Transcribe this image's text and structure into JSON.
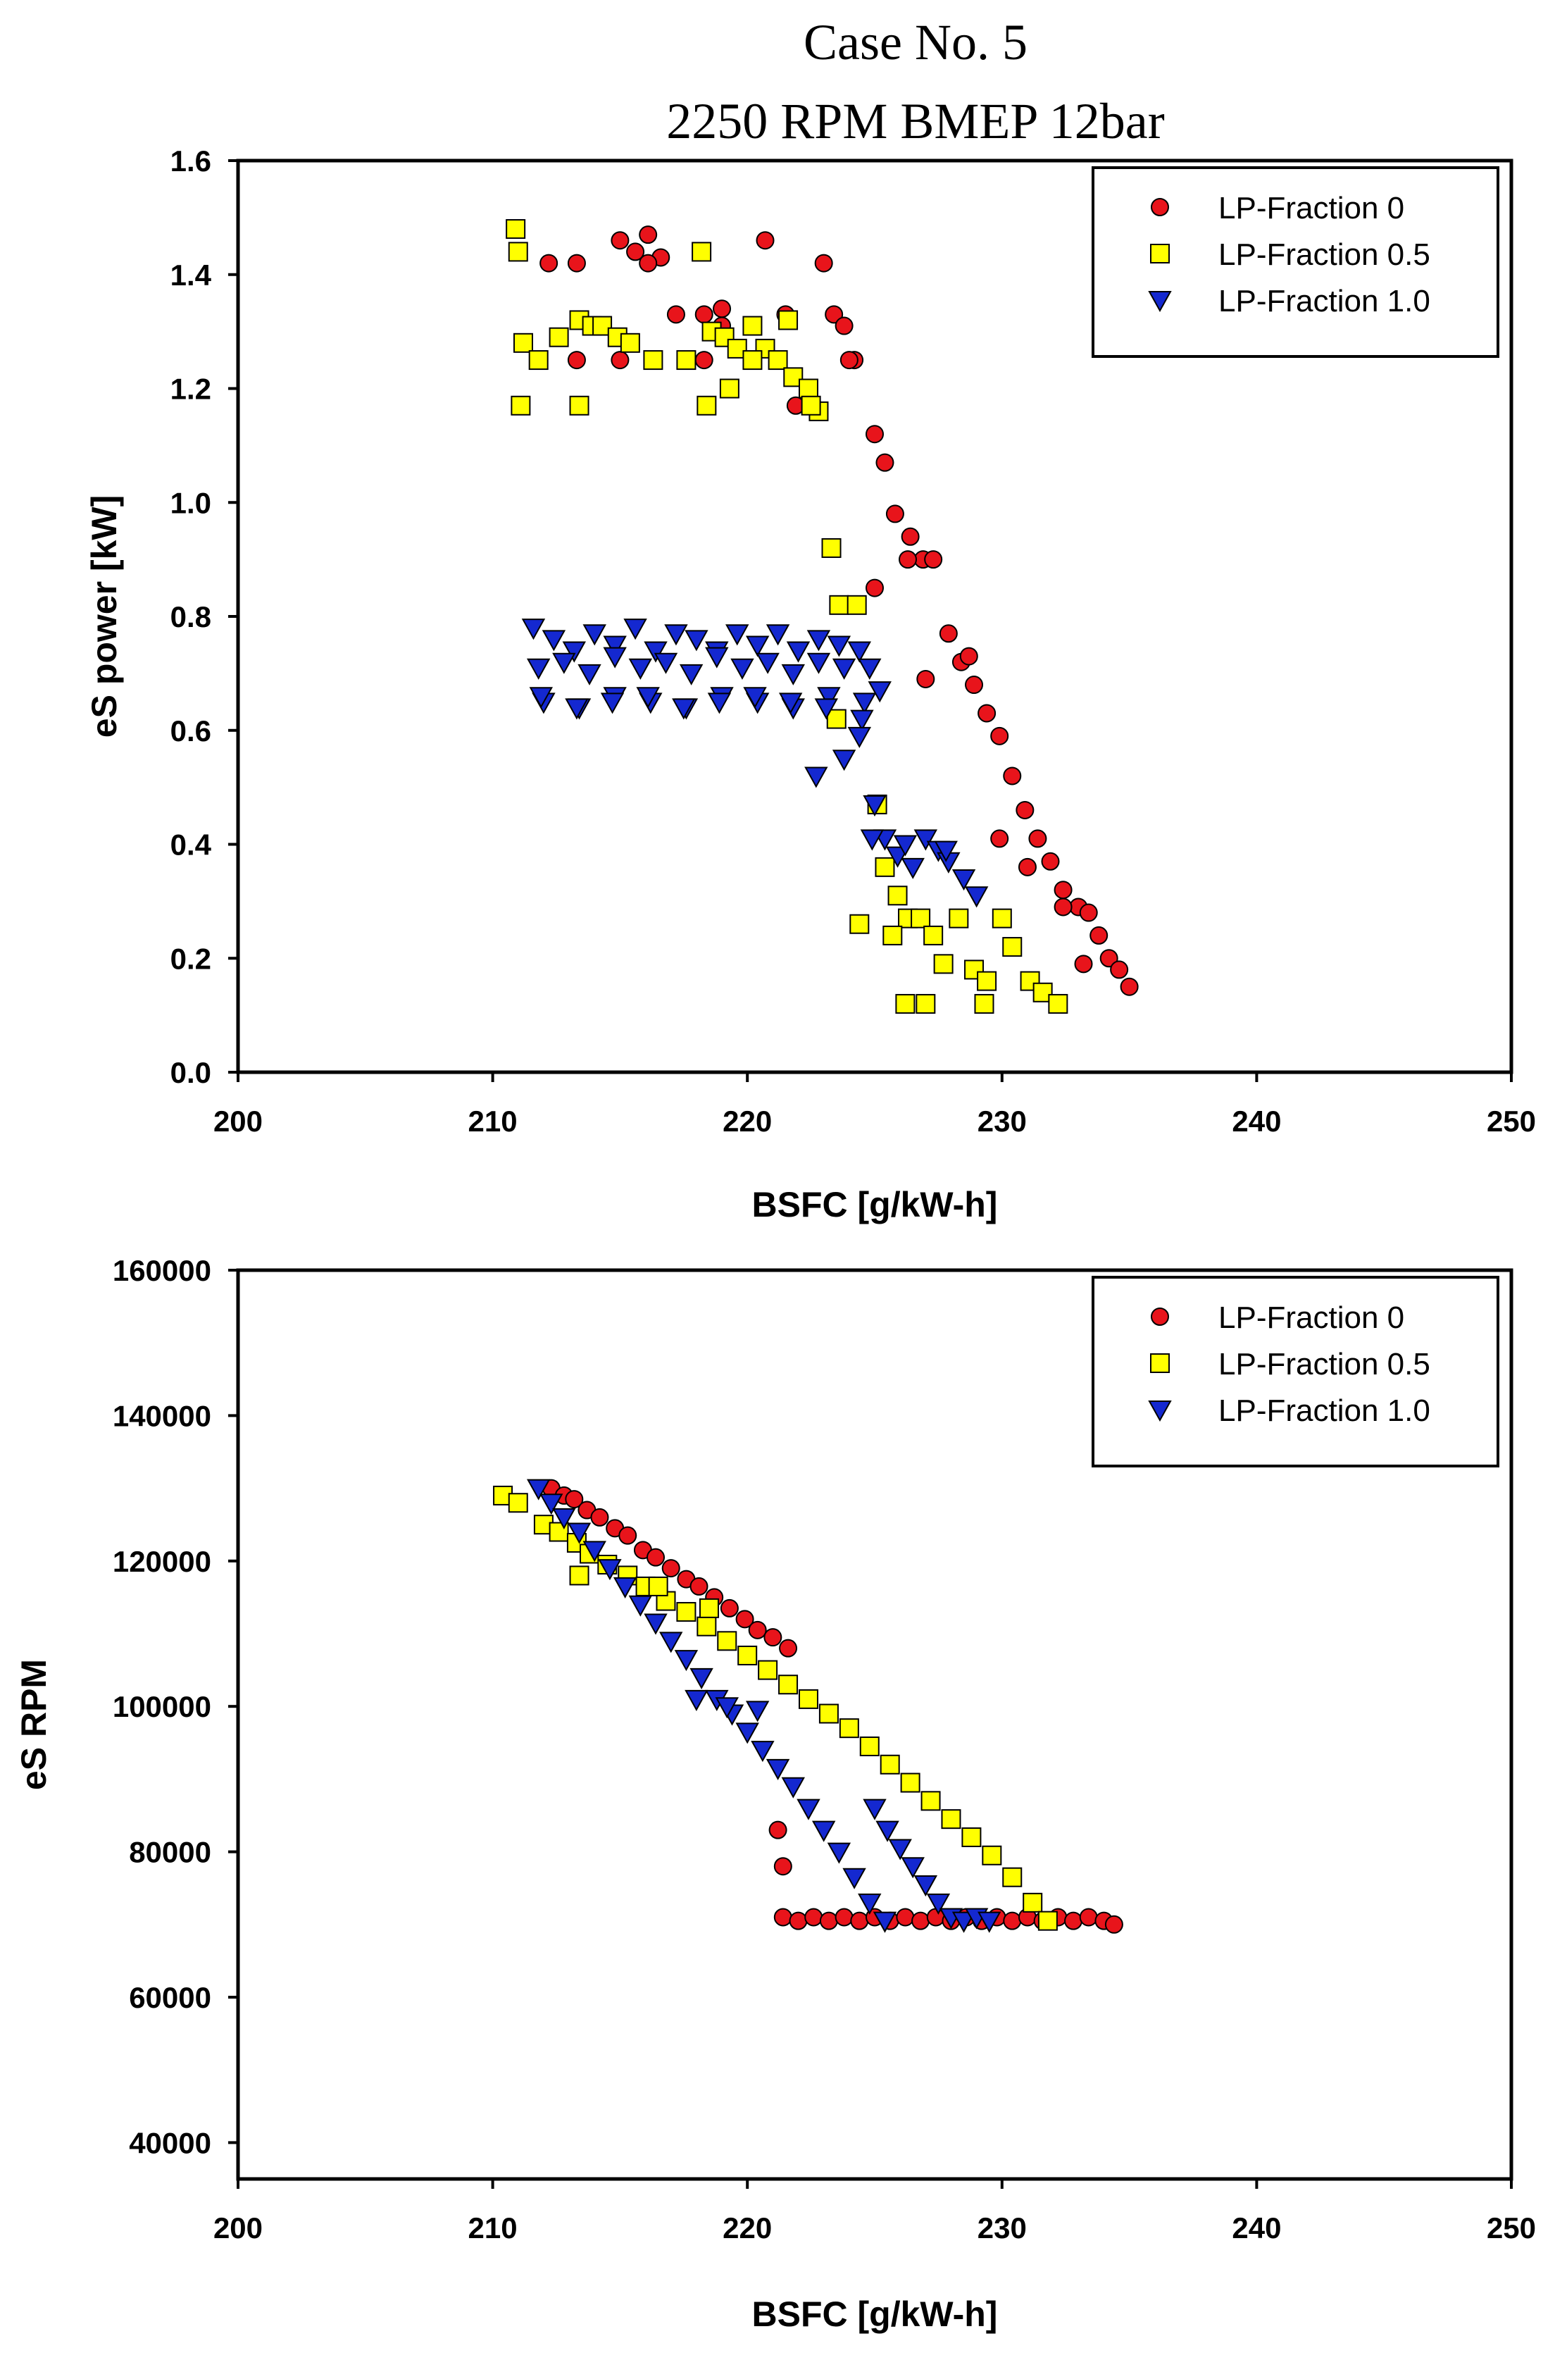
{
  "title": {
    "line1": "Case No. 5",
    "line2": "2250 RPM BMEP 12bar"
  },
  "chart_data": [
    {
      "type": "scatter",
      "xlabel": "BSFC [g/kW-h]",
      "ylabel": "eS power [kW]",
      "xlim": [
        200,
        250
      ],
      "ylim": [
        0,
        1.6
      ],
      "xticks": [
        "200",
        "210",
        "220",
        "230",
        "240",
        "250"
      ],
      "yticks": [
        "0.0",
        "0.2",
        "0.4",
        "0.6",
        "0.8",
        "1.0",
        "1.2",
        "1.4",
        "1.6"
      ],
      "legend_position": "top-right",
      "series": [
        {
          "name": "LP-Fraction 0",
          "color": "#e8141b",
          "marker": "circle",
          "x": [
            212.2,
            213.3,
            215.0,
            215.6,
            216.1,
            216.6,
            218.3,
            219.0,
            220.7,
            221.5,
            223.0,
            223.4,
            223.8,
            224.2,
            225.0,
            225.4,
            225.8,
            226.4,
            226.9,
            227.3,
            227.9,
            228.4,
            228.9,
            229.4,
            229.9,
            230.4,
            230.9,
            231.4,
            231.9,
            232.4,
            233.0,
            233.4,
            233.8,
            234.2,
            234.6,
            235.0,
            216.1,
            217.2,
            218.3,
            219.0,
            213.3,
            215.0,
            221.9,
            224.0,
            226.3,
            227.0,
            225.0,
            228.7,
            229.9,
            231.0,
            232.4,
            233.2
          ],
          "y": [
            1.42,
            1.42,
            1.46,
            1.44,
            1.47,
            1.43,
            1.33,
            1.34,
            1.46,
            1.33,
            1.42,
            1.33,
            1.31,
            1.25,
            1.12,
            1.07,
            0.98,
            0.94,
            0.9,
            0.9,
            0.77,
            0.72,
            0.68,
            0.63,
            0.59,
            0.52,
            0.46,
            0.41,
            0.37,
            0.32,
            0.29,
            0.28,
            0.24,
            0.2,
            0.18,
            0.15,
            1.42,
            1.33,
            1.25,
            1.31,
            1.25,
            1.25,
            1.17,
            1.25,
            0.9,
            0.69,
            0.85,
            0.73,
            0.41,
            0.36,
            0.29,
            0.19
          ]
        },
        {
          "name": "LP-Fraction 0.5",
          "color": "#ffff00",
          "marker": "square",
          "x": [
            210.9,
            211.0,
            211.2,
            211.8,
            212.6,
            213.4,
            213.9,
            214.3,
            214.9,
            215.4,
            216.3,
            217.6,
            218.2,
            218.6,
            219.1,
            219.6,
            220.2,
            220.7,
            221.2,
            221.8,
            222.4,
            222.8,
            211.1,
            213.4,
            218.4,
            219.3,
            220.2,
            221.6,
            222.5,
            223.3,
            223.6,
            224.3,
            224.4,
            225.1,
            225.4,
            225.9,
            226.3,
            226.8,
            227.3,
            227.7,
            228.3,
            228.9,
            229.4,
            230.0,
            230.4,
            231.1,
            231.6,
            232.2,
            226.2,
            227.0,
            229.3,
            223.5,
            225.7
          ],
          "y": [
            1.48,
            1.44,
            1.28,
            1.25,
            1.29,
            1.32,
            1.31,
            1.31,
            1.29,
            1.28,
            1.25,
            1.25,
            1.44,
            1.3,
            1.29,
            1.27,
            1.31,
            1.27,
            1.25,
            1.22,
            1.2,
            1.16,
            1.17,
            1.17,
            1.17,
            1.2,
            1.25,
            1.32,
            1.17,
            0.92,
            0.82,
            0.82,
            0.26,
            0.47,
            0.36,
            0.31,
            0.27,
            0.27,
            0.24,
            0.19,
            0.27,
            0.18,
            0.16,
            0.27,
            0.22,
            0.16,
            0.14,
            0.12,
            0.12,
            0.12,
            0.12,
            0.62,
            0.24
          ]
        },
        {
          "name": "LP-Fraction 1.0",
          "color": "#1428d0",
          "marker": "triangle-down",
          "x": [
            211.6,
            212.4,
            213.2,
            214.0,
            214.8,
            215.6,
            216.4,
            217.2,
            218.0,
            218.8,
            219.6,
            220.4,
            221.2,
            222.0,
            222.8,
            223.6,
            224.4,
            211.8,
            212.8,
            213.8,
            214.8,
            215.8,
            216.8,
            217.8,
            218.8,
            219.8,
            220.8,
            221.8,
            222.8,
            223.8,
            224.8,
            212.0,
            213.4,
            214.8,
            216.2,
            217.6,
            219.0,
            220.4,
            221.8,
            223.2,
            224.6,
            225.2,
            211.9,
            213.3,
            214.7,
            216.1,
            217.5,
            218.9,
            220.3,
            221.7,
            223.1,
            224.5,
            222.7,
            223.8,
            224.4,
            225.0,
            225.4,
            225.9,
            226.5,
            227.0,
            227.5,
            227.9,
            228.5,
            229.0,
            224.9,
            226.2,
            227.8
          ],
          "y": [
            0.78,
            0.76,
            0.74,
            0.77,
            0.75,
            0.78,
            0.74,
            0.77,
            0.76,
            0.74,
            0.77,
            0.75,
            0.77,
            0.74,
            0.76,
            0.75,
            0.74,
            0.71,
            0.72,
            0.7,
            0.73,
            0.71,
            0.72,
            0.7,
            0.73,
            0.71,
            0.72,
            0.7,
            0.72,
            0.71,
            0.71,
            0.65,
            0.64,
            0.66,
            0.65,
            0.64,
            0.66,
            0.65,
            0.64,
            0.66,
            0.65,
            0.67,
            0.66,
            0.64,
            0.65,
            0.66,
            0.64,
            0.65,
            0.66,
            0.65,
            0.64,
            0.62,
            0.52,
            0.55,
            0.59,
            0.47,
            0.41,
            0.38,
            0.36,
            0.41,
            0.39,
            0.37,
            0.34,
            0.31,
            0.41,
            0.4,
            0.39
          ]
        }
      ]
    },
    {
      "type": "scatter",
      "xlabel": "BSFC [g/kW-h]",
      "ylabel": "eS RPM",
      "xlim": [
        200,
        250
      ],
      "ylim": [
        35000,
        160000
      ],
      "xticks": [
        "200",
        "210",
        "220",
        "230",
        "240",
        "250"
      ],
      "yticks": [
        "40000",
        "60000",
        "80000",
        "100000",
        "120000",
        "140000",
        "160000"
      ],
      "legend_position": "top-right",
      "series": [
        {
          "name": "LP-Fraction 0",
          "color": "#e8141b",
          "marker": "circle",
          "x": [
            212.3,
            212.8,
            213.2,
            213.7,
            214.2,
            214.8,
            215.3,
            215.9,
            216.4,
            217.0,
            217.6,
            218.1,
            218.7,
            219.3,
            219.9,
            220.4,
            221.0,
            221.6,
            221.2,
            221.4,
            221.4,
            222.0,
            222.6,
            223.2,
            223.8,
            224.4,
            225.0,
            225.6,
            226.2,
            226.8,
            227.4,
            228.0,
            228.6,
            229.2,
            229.8,
            230.4,
            231.0,
            231.6,
            232.2,
            232.8,
            233.4,
            234.0,
            234.4
          ],
          "y": [
            130000,
            129000,
            128500,
            127000,
            126000,
            124500,
            123500,
            121500,
            120500,
            119000,
            117500,
            116500,
            115000,
            113500,
            112000,
            110500,
            109500,
            108000,
            83000,
            78000,
            71000,
            70500,
            71000,
            70500,
            71000,
            70500,
            71000,
            70500,
            71000,
            70500,
            71000,
            70500,
            71000,
            70500,
            71000,
            70500,
            71000,
            70500,
            71000,
            70500,
            71000,
            70500,
            70000
          ]
        },
        {
          "name": "LP-Fraction 0.5",
          "color": "#ffff00",
          "marker": "square",
          "x": [
            210.4,
            211.0,
            212.0,
            212.6,
            213.3,
            213.8,
            214.5,
            215.3,
            216.0,
            216.8,
            217.6,
            218.4,
            219.2,
            220.0,
            220.8,
            221.6,
            222.4,
            223.2,
            224.0,
            224.8,
            225.6,
            226.4,
            227.2,
            228.0,
            228.8,
            229.6,
            230.4,
            231.2,
            231.8,
            213.4,
            216.5,
            218.5
          ],
          "y": [
            129000,
            128000,
            125000,
            124000,
            122500,
            121000,
            119500,
            118000,
            116500,
            114500,
            113000,
            111000,
            109000,
            107000,
            105000,
            103000,
            101000,
            99000,
            97000,
            94500,
            92000,
            89500,
            87000,
            84500,
            82000,
            79500,
            76500,
            73000,
            70500,
            118000,
            116500,
            113500
          ]
        },
        {
          "name": "LP-Fraction 1.0",
          "color": "#1428d0",
          "marker": "triangle-down",
          "x": [
            211.8,
            212.3,
            212.8,
            213.4,
            214.0,
            214.6,
            215.2,
            215.8,
            216.4,
            217.0,
            217.6,
            218.2,
            218.8,
            219.4,
            220.0,
            220.6,
            221.2,
            221.8,
            222.4,
            223.0,
            223.6,
            224.2,
            224.8,
            225.4,
            218.0,
            219.2,
            220.4,
            225.0,
            225.5,
            226.0,
            226.5,
            227.0,
            227.5,
            228.0,
            228.5,
            229.0,
            229.5
          ],
          "y": [
            130000,
            128000,
            126000,
            124000,
            121500,
            119000,
            116500,
            114000,
            111500,
            109000,
            106500,
            104000,
            101000,
            99000,
            96500,
            94000,
            91500,
            89000,
            86000,
            83000,
            80000,
            76500,
            73000,
            70500,
            101000,
            100000,
            99500,
            86000,
            83000,
            80500,
            78000,
            75500,
            73000,
            71000,
            70500,
            71000,
            70500
          ]
        }
      ]
    }
  ]
}
